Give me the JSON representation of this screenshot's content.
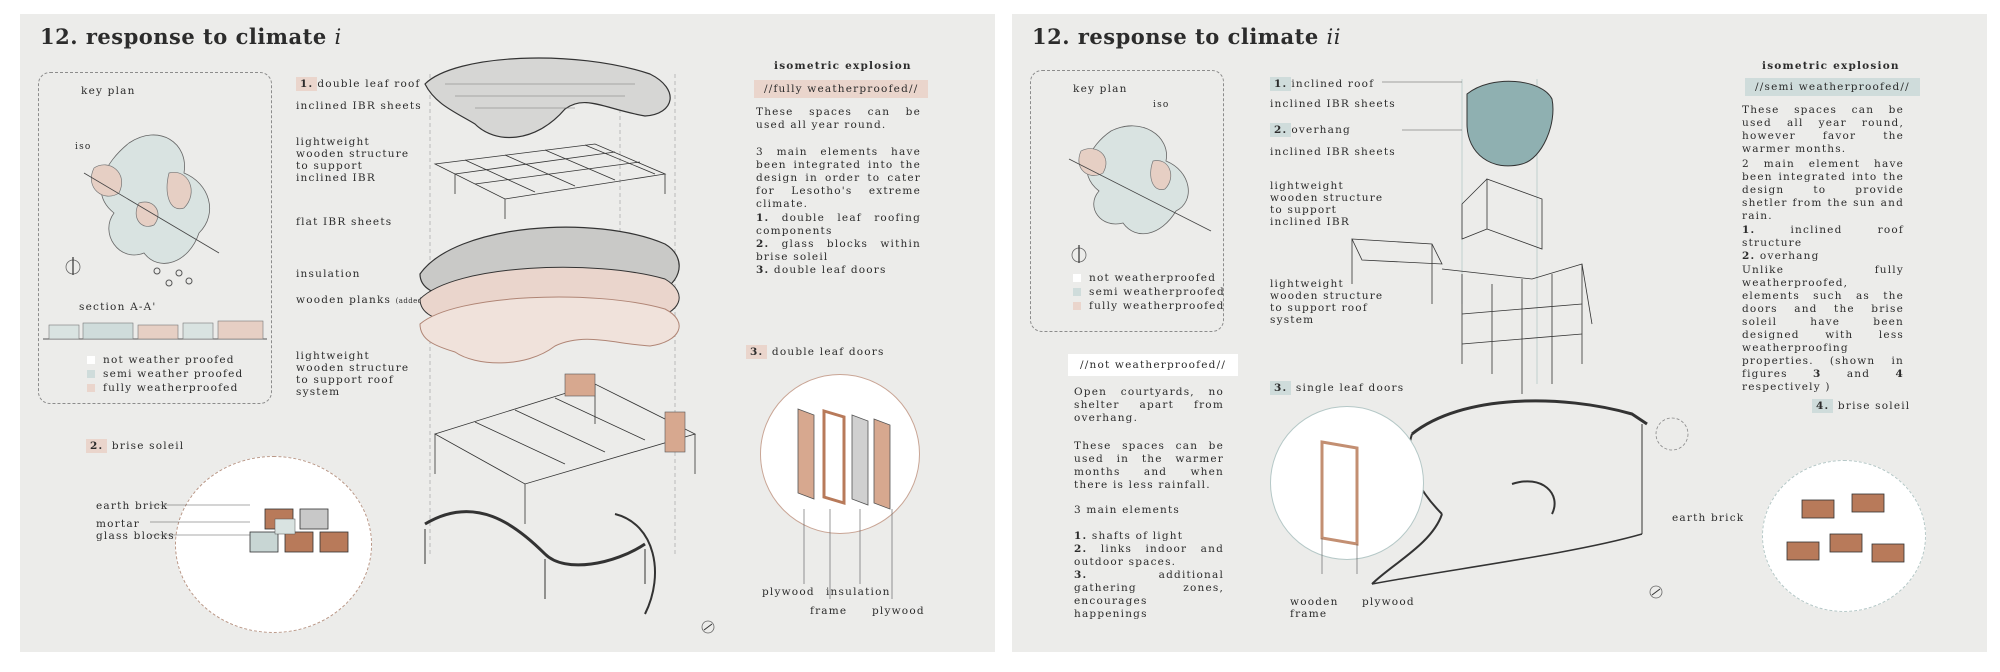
{
  "left": {
    "title": "12. response to climate",
    "title_numeral": "i",
    "key_plan": {
      "label": "key plan",
      "iso_label": "iso",
      "section_label": "section A-A'",
      "legend": [
        "not weather proofed",
        "semi weather proofed",
        "fully weatherproofed"
      ]
    },
    "layers": {
      "double_leaf_roof_num": "1.",
      "double_leaf_roof": "double leaf roof",
      "inclined_ibr": "inclined IBR sheets",
      "lightweight_support": "lightweight wooden structure to support inclined IBR",
      "flat_ibr": "flat IBR sheets",
      "insulation": "insulation",
      "wooden_planks": "wooden planks",
      "wooden_planks_note": "(added insulation and support)",
      "roof_system": "lightweight wooden structure to support roof system"
    },
    "brise_soleil": {
      "heading_num": "2.",
      "heading": "brise soleil",
      "earth_brick": "earth brick",
      "mortar": "mortar",
      "glass_blocks": "glass blocks"
    },
    "explosion": {
      "heading": "isometric explosion",
      "tag": "//fully weatherproofed//",
      "p1": "These spaces can be used all year round.",
      "p2": "3 main elements have been integrated into the design in order to cater for Lesotho's extreme climate.",
      "list": [
        {
          "num": "1.",
          "text": "double leaf roofing components"
        },
        {
          "num": "2.",
          "text": "glass blocks within brise soleil"
        },
        {
          "num": "3.",
          "text": "double leaf doors"
        }
      ]
    },
    "doors": {
      "heading_num": "3.",
      "heading": "double leaf doors",
      "plywood_a": "plywood",
      "frame": "frame",
      "insulation": "insulation",
      "plywood_b": "plywood"
    }
  },
  "right": {
    "title": "12. response to climate",
    "title_numeral": "ii",
    "key_plan": {
      "label": "key plan",
      "iso_label": "iso",
      "legend": [
        "not weatherproofed",
        "semi weatherproofed",
        "fully weatherproofed"
      ]
    },
    "roof": {
      "inclined_roof_num": "1.",
      "inclined_roof": "inclined roof",
      "inclined_ibr_a": "inclined IBR sheets",
      "overhang_num": "2.",
      "overhang": "overhang",
      "inclined_ibr_b": "inclined IBR sheets",
      "support_ibr": "lightweight wooden structure to support inclined IBR",
      "support_roof": "lightweight wooden structure to support roof system"
    },
    "not_weatherproofed": {
      "tag": "//not weatherproofed//",
      "p1": "Open courtyards, no shelter apart from overhang.",
      "p2": "These spaces can be used in the warmer months and when there is less rainfall.",
      "p3": "3 main elements",
      "list": [
        {
          "num": "1.",
          "text": "shafts of light"
        },
        {
          "num": "2.",
          "text": "links indoor and outdoor spaces."
        },
        {
          "num": "3.",
          "text": "additional gathering zones, encourages happenings"
        }
      ]
    },
    "doors": {
      "heading_num": "3.",
      "heading": "single leaf doors",
      "wooden_frame": "wooden frame",
      "plywood": "plywood"
    },
    "explosion": {
      "heading": "isometric explosion",
      "tag": "//semi weatherproofed//",
      "p1": "These spaces can be used all year round, however favor the warmer months.",
      "p2": "2 main element have been integrated into the design to provide shetler from the sun and rain.",
      "list": [
        {
          "num": "1.",
          "text": "inclined roof structure"
        },
        {
          "num": "2.",
          "text": "overhang"
        }
      ],
      "p3_a": "Unlike fully weatherproofed, elements such as the doors and the brise soleil have been designed with less weatherproofing properties. (shown in figures ",
      "p3_b": "3",
      "p3_c": " and ",
      "p3_d": "4",
      "p3_e": " respectively )"
    },
    "brise_soleil": {
      "heading_num": "4.",
      "heading": "brise soleil",
      "earth_brick": "earth brick"
    }
  },
  "colors": {
    "background": "#ececea",
    "pink_tag": "#ead5cc",
    "blue_tag": "#cfdcdb",
    "roof_teal": "#8fb0b1",
    "brick": "#b87a5a"
  }
}
